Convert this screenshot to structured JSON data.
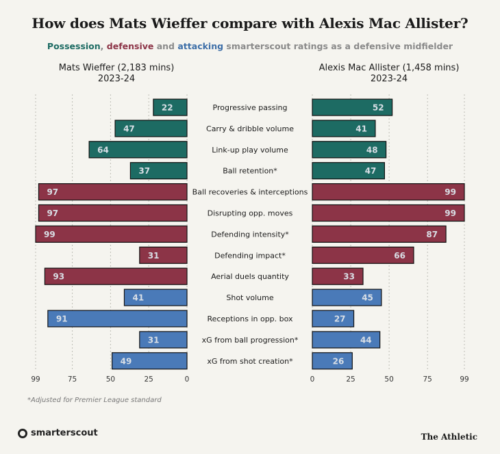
{
  "title": "How does Mats Wieffer compare with Alexis Mac Allister?",
  "subtitle": {
    "possession": "Possession",
    "sep1": ", ",
    "defensive": "defensive",
    "sep2": " and ",
    "attacking": "attacking",
    "rest": " smarterscout ratings as a defensive midfielder"
  },
  "left_player": {
    "name": "Mats Wieffer (2,183 mins)",
    "season": "2023-24"
  },
  "right_player": {
    "name": "Alexis Mac Allister (1,458 mins)",
    "season": "2023-24"
  },
  "footnote": "*Adjusted for Premier League standard",
  "brand": "smarterscout",
  "publisher": "The Athletic",
  "colors": {
    "possession": "#1d6b63",
    "defensive": "#8c3447",
    "attacking": "#4a7ab8",
    "value_label": "#d9dfe6"
  },
  "chart_data": {
    "type": "bar",
    "orientation": "horizontal-butterfly",
    "xlim": [
      0,
      99
    ],
    "ticks": [
      0,
      25,
      50,
      75,
      99
    ],
    "categories": [
      "Progressive passing",
      "Carry & dribble volume",
      "Link-up play volume",
      "Ball retention*",
      "Ball recoveries & interceptions",
      "Disrupting opp. moves",
      "Defending intensity*",
      "Defending impact*",
      "Aerial duels quantity",
      "Shot volume",
      "Receptions in opp. box",
      "xG from ball progression*",
      "xG from shot creation*"
    ],
    "groups": [
      "possession",
      "possession",
      "possession",
      "possession",
      "defensive",
      "defensive",
      "defensive",
      "defensive",
      "defensive",
      "attacking",
      "attacking",
      "attacking",
      "attacking"
    ],
    "series": [
      {
        "name": "Mats Wieffer",
        "side": "left",
        "values": [
          22,
          47,
          64,
          37,
          97,
          97,
          99,
          31,
          93,
          41,
          91,
          31,
          49
        ]
      },
      {
        "name": "Alexis Mac Allister",
        "side": "right",
        "values": [
          52,
          41,
          48,
          47,
          99,
          99,
          87,
          66,
          33,
          45,
          27,
          44,
          26
        ]
      }
    ]
  }
}
